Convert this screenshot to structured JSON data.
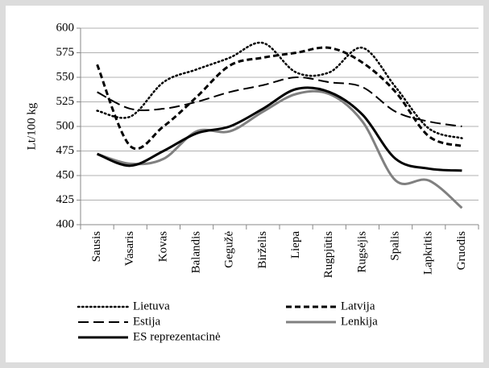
{
  "chart_data": {
    "type": "line",
    "y_label": "Lt/100 kg",
    "categories": [
      "Sausis",
      "Vasaris",
      "Kovas",
      "Balandis",
      "Gegužė",
      "Birželis",
      "Liepa",
      "Rugpjūtis",
      "Rugsėjis",
      "Spalis",
      "Lapkritis",
      "Gruodis"
    ],
    "series": [
      {
        "name": "Lietuva",
        "color": "#000000",
        "dash": "dotted",
        "values": [
          516,
          510,
          545,
          558,
          570,
          585,
          555,
          555,
          580,
          540,
          498,
          488
        ]
      },
      {
        "name": "Latvija",
        "color": "#000000",
        "dash": "dashed",
        "values": [
          563,
          480,
          500,
          530,
          562,
          570,
          575,
          580,
          565,
          535,
          490,
          480
        ]
      },
      {
        "name": "Estija",
        "color": "#000000",
        "dash": "long-dashed",
        "values": [
          535,
          518,
          518,
          525,
          535,
          542,
          550,
          545,
          540,
          515,
          505,
          500
        ]
      },
      {
        "name": "Lenkija",
        "color": "#808080",
        "dash": "solid",
        "values": [
          472,
          462,
          467,
          495,
          495,
          515,
          533,
          533,
          505,
          445,
          445,
          417
        ]
      },
      {
        "name": "ES reprezentacinė",
        "color": "#000000",
        "dash": "solid",
        "values": [
          472,
          460,
          475,
          493,
          500,
          518,
          538,
          535,
          512,
          467,
          457,
          455
        ]
      }
    ],
    "ylim": [
      400,
      600
    ],
    "yticks": [
      400,
      425,
      450,
      475,
      500,
      525,
      550,
      575,
      600
    ],
    "grid": true
  }
}
